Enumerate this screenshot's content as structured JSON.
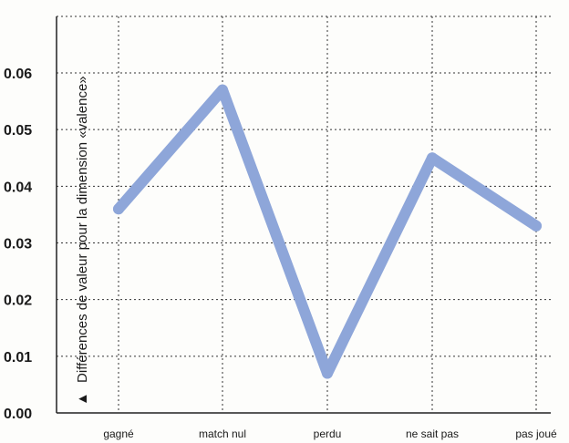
{
  "chart_data": {
    "type": "line",
    "title": "",
    "xlabel": "",
    "ylabel": "Différences de valeur pour la dimension «valence»",
    "ylabel_marker": "▲",
    "categories": [
      "gagné",
      "match nul",
      "perdu",
      "ne sait pas",
      "pas joué"
    ],
    "series": [
      {
        "values": [
          0.036,
          0.057,
          0.007,
          0.045,
          0.033
        ]
      }
    ],
    "ylim": [
      0,
      0.06
    ],
    "yticks": [
      "0.00",
      "0.01",
      "0.02",
      "0.03",
      "0.04",
      "0.05",
      "0.06"
    ],
    "grid": true,
    "line_color": "#8ea6d9"
  }
}
